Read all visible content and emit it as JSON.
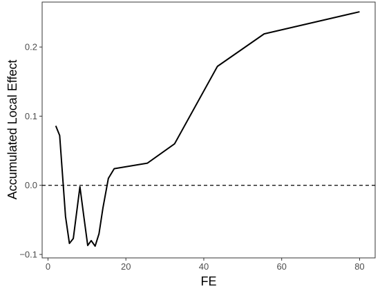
{
  "chart_data": {
    "type": "line",
    "title": "",
    "xlabel": "FE",
    "ylabel": "Accumulated Local Effect",
    "xlim": [
      -1.5,
      84
    ],
    "ylim": [
      -0.105,
      0.265
    ],
    "x_ticks": [
      0,
      20,
      40,
      60,
      80
    ],
    "x_tick_labels": [
      "0",
      "20",
      "40",
      "60",
      "80"
    ],
    "y_ticks": [
      -0.1,
      0.0,
      0.1,
      0.2
    ],
    "y_tick_labels": [
      "−0.1",
      "0.0",
      "0.1",
      "0.2"
    ],
    "grid": false,
    "legend": "none",
    "reference_line": {
      "y": 0,
      "style": "dashed"
    },
    "series": [
      {
        "x": [
          2.0,
          3.0,
          4.5,
          5.5,
          6.5,
          8.2,
          9.2,
          10.2,
          11.1,
          12.1,
          13.1,
          14.1,
          15.5,
          17.0,
          25.5,
          32.5,
          43.5,
          55.5,
          80.0
        ],
        "values": [
          0.086,
          0.072,
          -0.045,
          -0.084,
          -0.077,
          -0.002,
          -0.045,
          -0.087,
          -0.08,
          -0.088,
          -0.07,
          -0.033,
          0.01,
          0.024,
          0.032,
          0.06,
          0.172,
          0.219,
          0.251
        ]
      }
    ]
  }
}
